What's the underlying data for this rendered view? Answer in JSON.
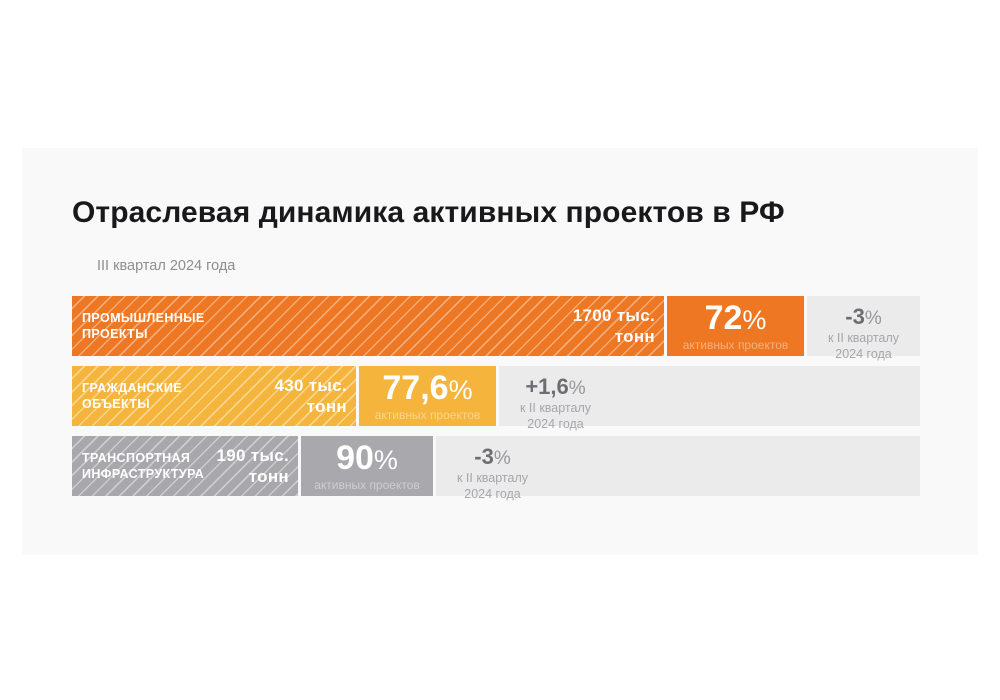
{
  "title": "Отраслевая динамика активных проектов в РФ",
  "subtitle": "III квартал 2024 года",
  "colors": {
    "industrial": "#ED7723",
    "civil": "#F5B53C",
    "transport": "#A8A8AC",
    "delta_block_bg": "#EBEBEC",
    "panel_bg": "#F9F9F9",
    "title_text": "#19191B",
    "delta_text": "#6D6D72"
  },
  "rows": [
    {
      "sector_line1": "ПРОМЫШЛЕННЫЕ",
      "sector_line2": "ПРОЕКТЫ",
      "volume_line1": "1700 тыс.",
      "volume_line2": "тонн",
      "percent": "72",
      "percent_symbol": "%",
      "percent_caption": "активных проектов",
      "delta": "-3",
      "delta_symbol": "%",
      "delta_caption_line1": "к II кварталу",
      "delta_caption_line2": "2024 года"
    },
    {
      "sector_line1": "ГРАЖДАНСКИЕ",
      "sector_line2": "ОБЪЕКТЫ",
      "volume_line1": "430 тыс.",
      "volume_line2": "тонн",
      "percent": "77,6",
      "percent_symbol": "%",
      "percent_caption": "активных проектов",
      "delta": "+1,6",
      "delta_symbol": "%",
      "delta_caption_line1": "к II кварталу",
      "delta_caption_line2": "2024 года"
    },
    {
      "sector_line1": "ТРАНСПОРТНАЯ",
      "sector_line2": "ИНФРАСТРУКТУРА",
      "volume_line1": "190 тыс.",
      "volume_line2": "тонн",
      "percent": "90",
      "percent_symbol": "%",
      "percent_caption": "активных проектов",
      "delta": "-3",
      "delta_symbol": "%",
      "delta_caption_line1": "к II кварталу",
      "delta_caption_line2": "2024 года"
    }
  ],
  "chart_data": {
    "type": "bar",
    "orientation": "horizontal",
    "title": "Отраслевая динамика активных проектов в РФ",
    "subtitle": "III квартал 2024 года",
    "categories": [
      "Промышленные проекты",
      "Гражданские объекты",
      "Транспортная инфраструктура"
    ],
    "series": [
      {
        "name": "Объём, тыс. тонн",
        "values": [
          1700,
          430,
          190
        ]
      },
      {
        "name": "Доля активных проектов, %",
        "values": [
          72,
          77.6,
          90
        ]
      },
      {
        "name": "Изменение к II кварталу 2024 года, %",
        "values": [
          -3,
          1.6,
          -3
        ]
      }
    ],
    "legend": false,
    "grid": false
  }
}
